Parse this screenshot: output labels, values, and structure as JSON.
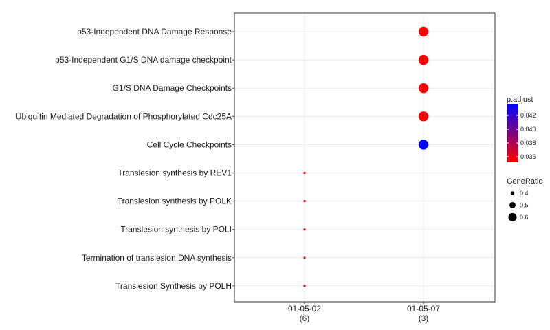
{
  "chart_data": {
    "type": "scatter",
    "title": "",
    "xlabel": "",
    "ylabel": "",
    "x_categories": [
      {
        "label": "01-05-02",
        "count": "(6)"
      },
      {
        "label": "01-05-07",
        "count": "(3)"
      }
    ],
    "y_categories": [
      "p53-Independent DNA Damage Response",
      "p53-Independent G1/S DNA damage checkpoint",
      "G1/S DNA Damage Checkpoints",
      "Ubiquitin Mediated Degradation of Phosphorylated Cdc25A",
      "Cell Cycle Checkpoints",
      "Translesion synthesis by REV1",
      "Translesion synthesis by POLK",
      "Translesion synthesis by POLI",
      "Termination of translesion DNA synthesis",
      "Translesion Synthesis by POLH"
    ],
    "points": [
      {
        "x": "01-05-07",
        "y": "p53-Independent DNA Damage Response",
        "gene_ratio": 0.667,
        "p_adjust": 0.0352
      },
      {
        "x": "01-05-07",
        "y": "p53-Independent G1/S DNA damage checkpoint",
        "gene_ratio": 0.667,
        "p_adjust": 0.0352
      },
      {
        "x": "01-05-07",
        "y": "G1/S DNA Damage Checkpoints",
        "gene_ratio": 0.667,
        "p_adjust": 0.0352
      },
      {
        "x": "01-05-07",
        "y": "Ubiquitin Mediated Degradation of Phosphorylated Cdc25A",
        "gene_ratio": 0.667,
        "p_adjust": 0.0352
      },
      {
        "x": "01-05-07",
        "y": "Cell Cycle Checkpoints",
        "gene_ratio": 0.667,
        "p_adjust": 0.0437
      },
      {
        "x": "01-05-02",
        "y": "Translesion synthesis by REV1",
        "gene_ratio": 0.333,
        "p_adjust": 0.0352
      },
      {
        "x": "01-05-02",
        "y": "Translesion synthesis by POLK",
        "gene_ratio": 0.333,
        "p_adjust": 0.0352
      },
      {
        "x": "01-05-02",
        "y": "Translesion synthesis by POLI",
        "gene_ratio": 0.333,
        "p_adjust": 0.0352
      },
      {
        "x": "01-05-02",
        "y": "Termination of translesion DNA synthesis",
        "gene_ratio": 0.333,
        "p_adjust": 0.0352
      },
      {
        "x": "01-05-02",
        "y": "Translesion Synthesis by POLH",
        "gene_ratio": 0.333,
        "p_adjust": 0.0352
      }
    ],
    "color_legend": {
      "title": "p.adjust",
      "range": [
        0.0352,
        0.0437
      ],
      "ticks": [
        0.036,
        0.038,
        0.04,
        0.042
      ],
      "tick_labels": [
        "0.036",
        "0.038",
        "0.040",
        "0.042"
      ],
      "low_color": "#ff0000",
      "high_color": "#0000ff"
    },
    "size_legend": {
      "title": "GeneRatio",
      "values": [
        0.4,
        0.5,
        0.6
      ],
      "labels": [
        "0.4",
        "0.5",
        "0.6"
      ]
    },
    "grid": true,
    "legend_position": "right"
  }
}
